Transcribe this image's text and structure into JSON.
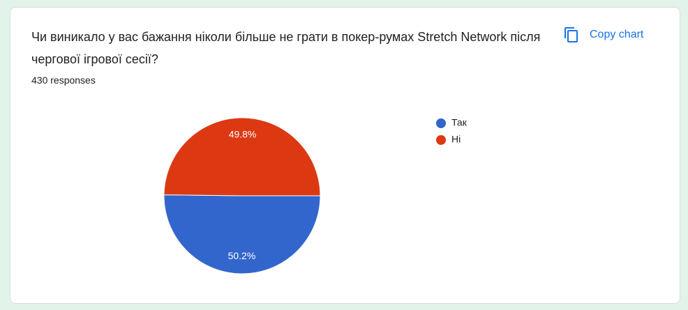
{
  "chart_data": {
    "type": "pie",
    "title": "Чи виникало у вас бажання ніколи більше не грати в покер-румах Stretch Network після чергової ігрової сесії?",
    "subtitle": "430 responses",
    "categories": [
      "Так",
      "Ні"
    ],
    "values": [
      50.2,
      49.8
    ],
    "value_labels": [
      "50.2%",
      "49.8%"
    ],
    "colors": [
      "#3366cc",
      "#dc3912"
    ],
    "legend": "right"
  },
  "button": {
    "label": "Copy chart"
  }
}
